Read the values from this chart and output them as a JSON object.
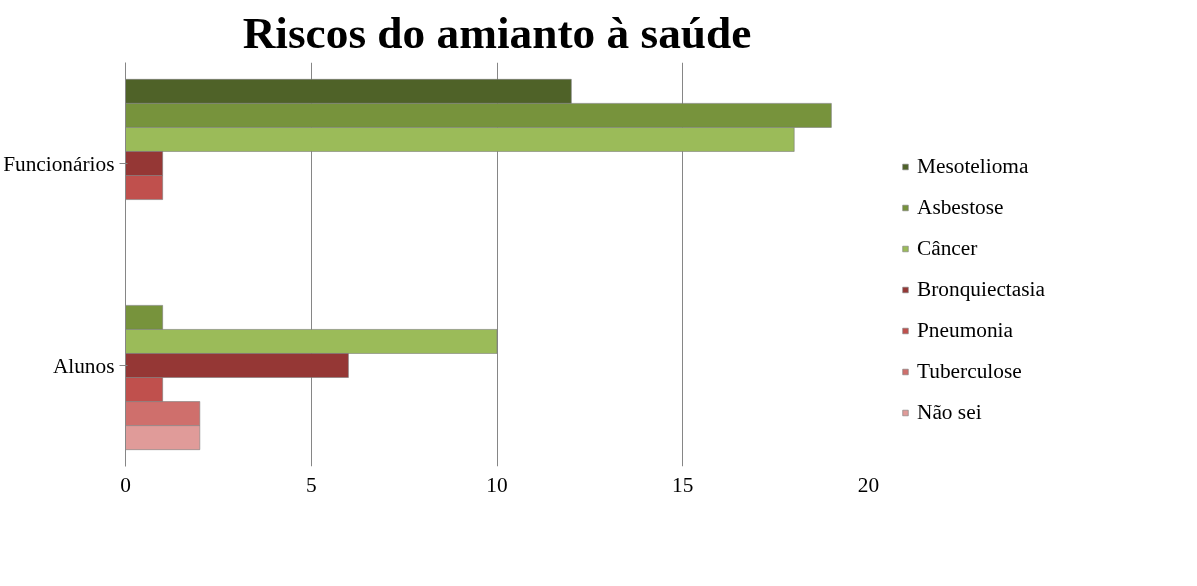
{
  "chart_data": {
    "type": "bar",
    "orientation": "horizontal",
    "title": "Riscos do amianto à saúde",
    "categories": [
      "Funcionários",
      "Alunos"
    ],
    "series": [
      {
        "name": "Mesotelioma",
        "color": "#4f6228",
        "values": [
          12,
          null
        ]
      },
      {
        "name": "Asbestose",
        "color": "#77933c",
        "values": [
          19,
          1
        ]
      },
      {
        "name": "Câncer",
        "color": "#9bbb59",
        "values": [
          18,
          10
        ]
      },
      {
        "name": "Bronquiectasia",
        "color": "#953735",
        "values": [
          1,
          6
        ]
      },
      {
        "name": "Pneumonia",
        "color": "#c0504d",
        "values": [
          1,
          1
        ]
      },
      {
        "name": "Tuberculose",
        "color": "#cf6f6c",
        "values": [
          null,
          2
        ]
      },
      {
        "name": "Não sei",
        "color": "#e09b99",
        "values": [
          null,
          2
        ]
      }
    ],
    "xlim": [
      0,
      20
    ],
    "xticks": [
      0,
      5,
      10,
      15,
      20
    ],
    "grid": "x",
    "legend": "right"
  }
}
